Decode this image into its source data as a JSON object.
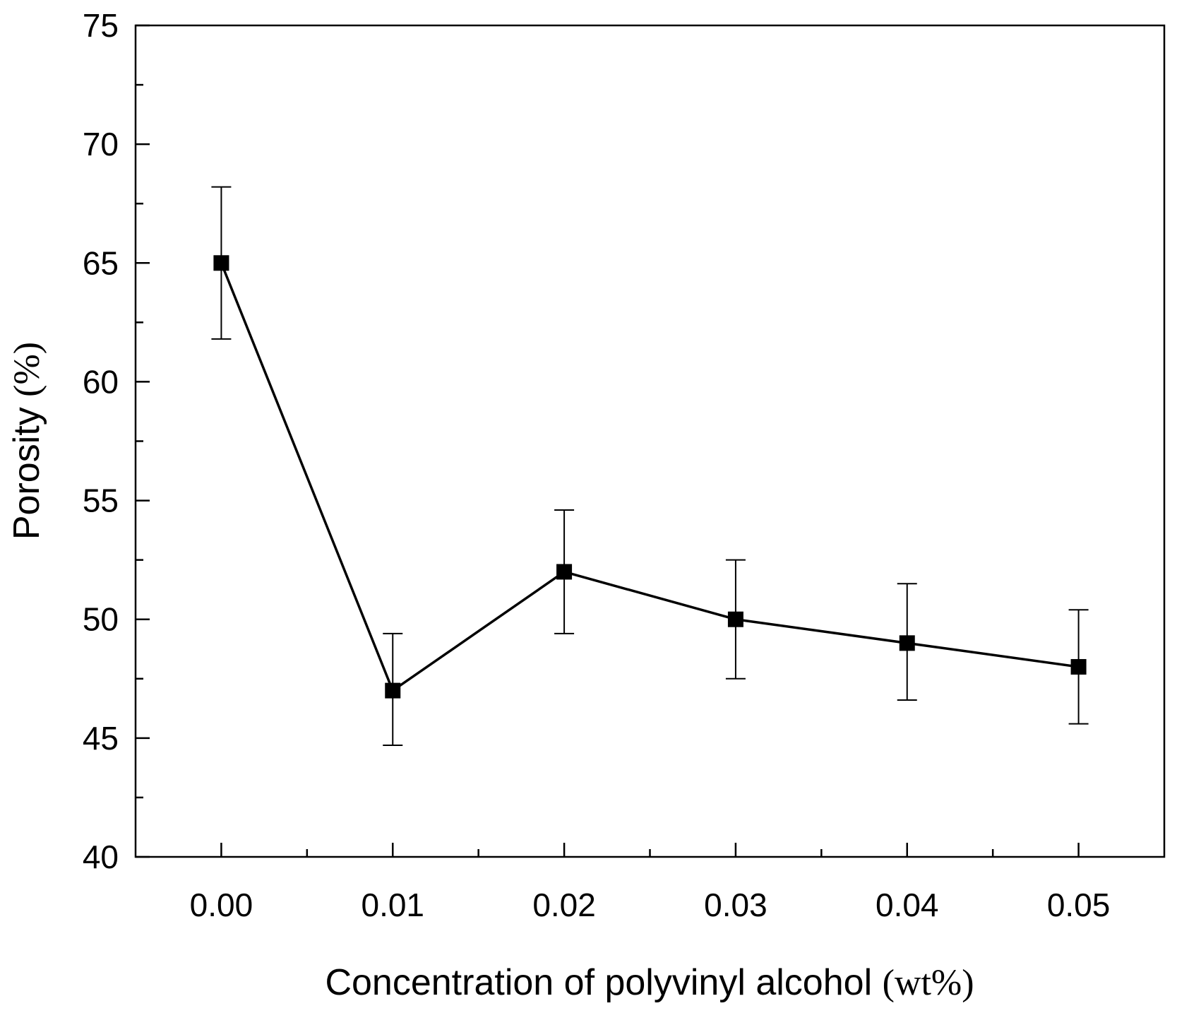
{
  "chart_data": {
    "type": "line",
    "title": "",
    "xlabel": {
      "main": "Concentration of polyvinyl alcohol ",
      "unit": "(wt%)"
    },
    "ylabel": {
      "main": "Porosity ",
      "unit": "(%)"
    },
    "xlim": [
      -0.005,
      0.055
    ],
    "ylim": [
      40,
      75
    ],
    "x_ticks": [
      "0.00",
      "0.01",
      "0.02",
      "0.03",
      "0.04",
      "0.05"
    ],
    "x_tick_values": [
      0.0,
      0.01,
      0.02,
      0.03,
      0.04,
      0.05
    ],
    "x_minor_tick_values": [
      0.005,
      0.015,
      0.025,
      0.035,
      0.045
    ],
    "y_ticks": [
      "40",
      "45",
      "50",
      "55",
      "60",
      "65",
      "70",
      "75"
    ],
    "y_tick_values": [
      40,
      45,
      50,
      55,
      60,
      65,
      70,
      75
    ],
    "y_minor_tick_values": [
      42.5,
      47.5,
      52.5,
      57.5,
      62.5,
      67.5,
      72.5
    ],
    "grid": false,
    "legend": "none",
    "series": [
      {
        "name": "Porosity",
        "marker": "square",
        "color": "#000000",
        "x": [
          0.0,
          0.01,
          0.02,
          0.03,
          0.04,
          0.05
        ],
        "y": [
          65,
          47,
          52,
          50,
          49,
          48
        ],
        "error_low": [
          61.8,
          44.7,
          49.4,
          47.5,
          46.6,
          45.6
        ],
        "error_high": [
          68.2,
          49.4,
          54.6,
          52.5,
          51.5,
          50.4
        ]
      }
    ]
  }
}
